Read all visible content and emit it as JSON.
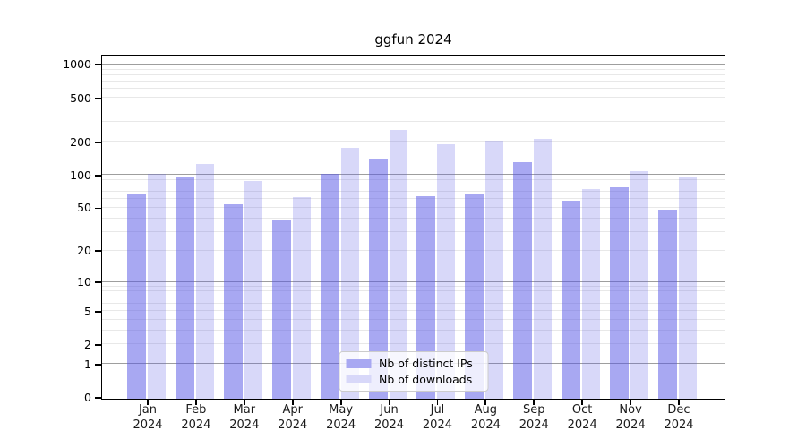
{
  "figure": {
    "background": "#ffffff"
  },
  "chart_data": {
    "type": "bar",
    "title": "ggfun 2024",
    "categories": [
      "Jan 2024",
      "Feb 2024",
      "Mar 2024",
      "Apr 2024",
      "May 2024",
      "Jun 2024",
      "Jul 2024",
      "Aug 2024",
      "Sep 2024",
      "Oct 2024",
      "Nov 2024",
      "Dec 2024"
    ],
    "series": [
      {
        "name": "Nb of distinct IPs",
        "color_hex": "#a8a8f2",
        "color_rgba": "rgba(85,85,230,0.51)",
        "values": [
          68,
          100,
          56,
          40,
          105,
          146,
          66,
          70,
          134,
          60,
          79,
          50
        ]
      },
      {
        "name": "Nb of downloads",
        "color_hex": "#d8d8f9",
        "color_rgba": "rgba(85,85,230,0.23)",
        "values": [
          105,
          130,
          90,
          64,
          180,
          262,
          197,
          210,
          220,
          77,
          112,
          97
        ]
      }
    ],
    "yscale": "log1p",
    "ylim": [
      0,
      1190
    ],
    "yticks": [
      0,
      1,
      2,
      5,
      10,
      20,
      50,
      100,
      200,
      500,
      1000
    ],
    "grid": {
      "major_lines": [
        1,
        10,
        100,
        1000
      ],
      "minor_lines": [
        2,
        3,
        4,
        5,
        6,
        7,
        8,
        9,
        20,
        30,
        40,
        50,
        60,
        70,
        80,
        90,
        200,
        300,
        400,
        500,
        600,
        700,
        800,
        900
      ],
      "major_color": "#9e9e9e",
      "minor_color": "#e8e8e8"
    },
    "legend_position": "inside-bottom-center",
    "grid_on": true
  }
}
